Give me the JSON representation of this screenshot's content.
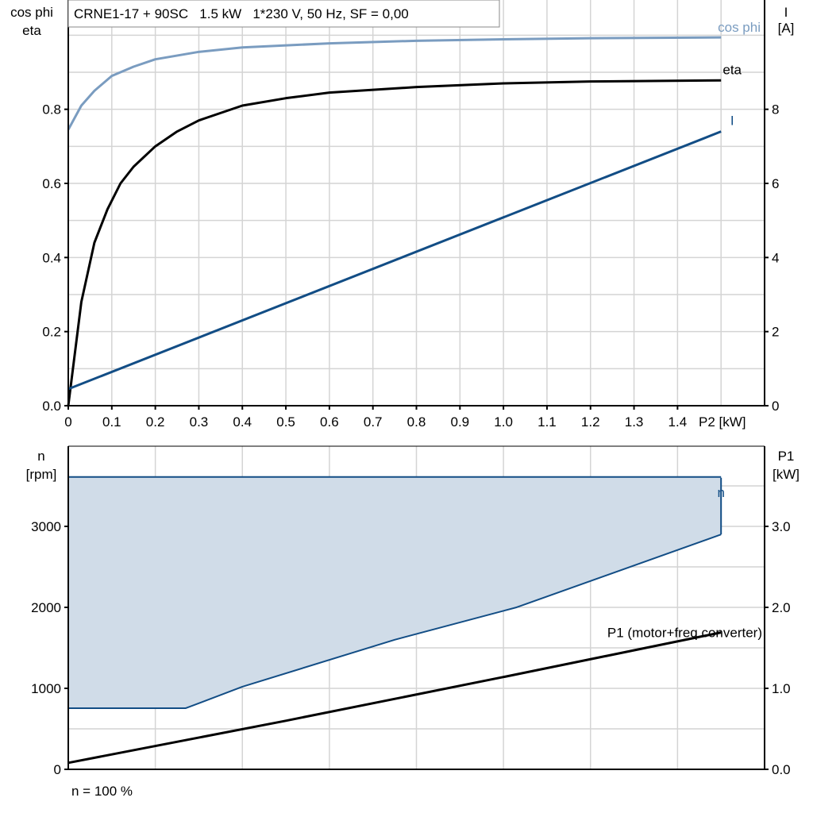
{
  "chart_data": [
    {
      "type": "line",
      "title": "CRNE1-17 + 90SC   1.5 kW   1*230 V, 50 Hz, SF = 0,00",
      "xlabel": "P2 [kW]",
      "ylabel_left": [
        "cos phi",
        "eta"
      ],
      "ylabel_right": [
        "I",
        "[A]"
      ],
      "xlim": [
        0,
        1.6
      ],
      "ylim_left": [
        0,
        1.095
      ],
      "ylim_right": [
        0,
        10.95
      ],
      "x_ticks": [
        "0",
        "0.1",
        "0.2",
        "0.3",
        "0.4",
        "0.5",
        "0.6",
        "0.7",
        "0.8",
        "0.9",
        "1.0",
        "1.1",
        "1.2",
        "1.3",
        "1.4"
      ],
      "y_ticks_left": [
        "0.0",
        "0.2",
        "0.4",
        "0.6",
        "0.8"
      ],
      "y_ticks_right": [
        "0",
        "2",
        "4",
        "6",
        "8"
      ],
      "grid": true,
      "series": [
        {
          "name": "cos phi",
          "axis": "left",
          "color": "#7a9cc0",
          "x": [
            0,
            0.03,
            0.06,
            0.1,
            0.15,
            0.2,
            0.3,
            0.4,
            0.6,
            0.8,
            1.0,
            1.2,
            1.5
          ],
          "y": [
            0.745,
            0.81,
            0.85,
            0.89,
            0.915,
            0.935,
            0.955,
            0.967,
            0.978,
            0.985,
            0.989,
            0.992,
            0.994
          ]
        },
        {
          "name": "eta",
          "axis": "left",
          "color": "#000000",
          "x": [
            0,
            0.03,
            0.06,
            0.09,
            0.12,
            0.15,
            0.2,
            0.25,
            0.3,
            0.4,
            0.5,
            0.6,
            0.8,
            1.0,
            1.2,
            1.5
          ],
          "y": [
            0,
            0.28,
            0.44,
            0.53,
            0.6,
            0.645,
            0.7,
            0.74,
            0.77,
            0.81,
            0.83,
            0.845,
            0.86,
            0.87,
            0.875,
            0.878
          ]
        },
        {
          "name": "I",
          "axis": "right",
          "color": "#124d85",
          "x": [
            0,
            1.5
          ],
          "y": [
            0.45,
            7.4
          ]
        }
      ]
    },
    {
      "type": "area",
      "ylabel_left": [
        "n",
        "[rpm]"
      ],
      "ylabel_right": [
        "P1",
        "[kW]"
      ],
      "xlim": [
        0,
        1.6
      ],
      "ylim_left": [
        0,
        3990
      ],
      "ylim_right": [
        0,
        3.99
      ],
      "y_ticks_left": [
        "0",
        "1000",
        "2000",
        "3000"
      ],
      "y_ticks_right": [
        "0.0",
        "1.0",
        "2.0",
        "3.0"
      ],
      "grid": true,
      "footnote": "n = 100 %",
      "series": [
        {
          "name": "n",
          "axis": "left",
          "color": "#124d85",
          "x": [
            0,
            1.5
          ],
          "y": [
            3600,
            3600
          ]
        },
        {
          "axis": "left",
          "color": "#124d85",
          "fill": "#d0dce8",
          "x": [
            0,
            0.27,
            0.4,
            0.75,
            1.03,
            1.5
          ],
          "y": [
            755,
            755,
            1020,
            1600,
            2000,
            2900
          ]
        },
        {
          "name": "P1 (motor+freq.converter)",
          "axis": "right",
          "color": "#000000",
          "x": [
            0,
            0.5,
            1.0,
            1.5
          ],
          "y": [
            0.08,
            0.6,
            1.14,
            1.69
          ]
        }
      ]
    }
  ]
}
